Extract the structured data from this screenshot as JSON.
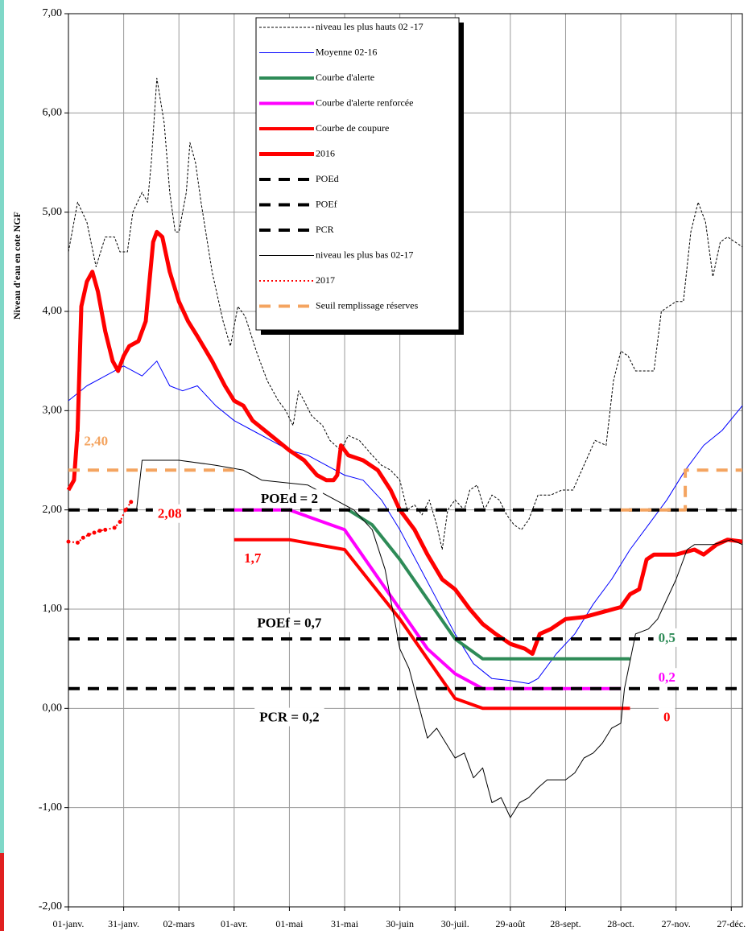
{
  "chart_data": {
    "type": "line",
    "y_label": "Niveau d'eau en cote NGF",
    "xlim": [
      0,
      366
    ],
    "ylim": [
      -2,
      7
    ],
    "xticks": [
      {
        "value": 0,
        "label": "01-janv."
      },
      {
        "value": 30,
        "label": "31-janv."
      },
      {
        "value": 60,
        "label": "02-mars"
      },
      {
        "value": 90,
        "label": "01-avr."
      },
      {
        "value": 120,
        "label": "01-mai"
      },
      {
        "value": 150,
        "label": "31-mai"
      },
      {
        "value": 180,
        "label": "30-juin"
      },
      {
        "value": 210,
        "label": "30-juil."
      },
      {
        "value": 240,
        "label": "29-août"
      },
      {
        "value": 270,
        "label": "28-sept."
      },
      {
        "value": 300,
        "label": "28-oct."
      },
      {
        "value": 330,
        "label": "27-nov."
      },
      {
        "value": 360,
        "label": "27-déc."
      }
    ],
    "yticks": [
      {
        "value": -2,
        "label": "-2,00"
      },
      {
        "value": -1,
        "label": "-1,00"
      },
      {
        "value": 0,
        "label": "0,00"
      },
      {
        "value": 1,
        "label": "1,00"
      },
      {
        "value": 2,
        "label": "2,00"
      },
      {
        "value": 3,
        "label": "3,00"
      },
      {
        "value": 4,
        "label": "4,00"
      },
      {
        "value": 5,
        "label": "5,00"
      },
      {
        "value": 6,
        "label": "6,00"
      },
      {
        "value": 7,
        "label": "7,00"
      }
    ],
    "grid": true,
    "series": [
      {
        "name": "niveau les plus hauts 02 -17",
        "color": "#000000",
        "style": "dashed",
        "width": 1,
        "x": [
          0,
          5,
          10,
          15,
          20,
          25,
          28,
          32,
          35,
          40,
          43,
          45,
          48,
          52,
          55,
          58,
          60,
          64,
          66,
          69,
          72,
          78,
          84,
          88,
          92,
          96,
          102,
          108,
          114,
          118,
          122,
          125,
          128,
          132,
          138,
          142,
          148,
          152,
          158,
          165,
          170,
          175,
          180,
          184,
          188,
          192,
          196,
          200,
          203,
          206,
          210,
          215,
          218,
          222,
          226,
          230,
          234,
          238,
          242,
          246,
          250,
          255,
          262,
          268,
          274,
          280,
          286,
          292,
          296,
          300,
          304,
          308,
          314,
          318,
          322,
          326,
          330,
          334,
          338,
          342,
          346,
          350,
          354,
          358,
          362,
          366
        ],
        "values": [
          4.6,
          5.1,
          4.9,
          4.45,
          4.75,
          4.75,
          4.6,
          4.6,
          5.0,
          5.2,
          5.1,
          5.5,
          6.35,
          5.9,
          5.2,
          4.8,
          4.8,
          5.2,
          5.7,
          5.5,
          5.1,
          4.4,
          3.9,
          3.65,
          4.05,
          3.95,
          3.6,
          3.3,
          3.1,
          3.0,
          2.85,
          3.2,
          3.1,
          2.95,
          2.85,
          2.7,
          2.6,
          2.75,
          2.7,
          2.55,
          2.45,
          2.4,
          2.3,
          2.0,
          2.05,
          1.95,
          2.1,
          1.85,
          1.6,
          2.0,
          2.1,
          2.0,
          2.2,
          2.25,
          2.0,
          2.15,
          2.1,
          1.95,
          1.85,
          1.8,
          1.9,
          2.15,
          2.15,
          2.2,
          2.2,
          2.45,
          2.7,
          2.65,
          3.3,
          3.6,
          3.55,
          3.4,
          3.4,
          3.4,
          4.0,
          4.05,
          4.1,
          4.1,
          4.8,
          5.1,
          4.9,
          4.35,
          4.7,
          4.75,
          4.7,
          4.65
        ]
      },
      {
        "name": "Moyenne 02-16",
        "color": "#0000ff",
        "style": "solid",
        "width": 1,
        "x": [
          0,
          10,
          20,
          30,
          40,
          48,
          55,
          62,
          70,
          80,
          90,
          100,
          110,
          120,
          130,
          140,
          150,
          160,
          170,
          180,
          190,
          200,
          210,
          220,
          230,
          240,
          250,
          255,
          265,
          275,
          285,
          295,
          305,
          315,
          325,
          335,
          345,
          355,
          366
        ],
        "values": [
          3.1,
          3.25,
          3.35,
          3.45,
          3.35,
          3.5,
          3.25,
          3.2,
          3.25,
          3.05,
          2.9,
          2.8,
          2.7,
          2.6,
          2.55,
          2.45,
          2.35,
          2.3,
          2.1,
          1.8,
          1.45,
          1.1,
          0.75,
          0.45,
          0.3,
          0.28,
          0.25,
          0.3,
          0.55,
          0.75,
          1.05,
          1.3,
          1.6,
          1.85,
          2.1,
          2.4,
          2.65,
          2.8,
          3.05
        ]
      },
      {
        "name": "Courbe d'alerte",
        "color": "#2e8b57",
        "style": "solid",
        "width": 4,
        "x": [
          152,
          165,
          180,
          195,
          210,
          225,
          305
        ],
        "values": [
          2.0,
          1.85,
          1.5,
          1.1,
          0.7,
          0.5,
          0.5
        ]
      },
      {
        "name": "Courbe d'alerte renforcée",
        "color": "#ff00ff",
        "style": "solid",
        "width": 4,
        "x": [
          90,
          120,
          150,
          165,
          180,
          195,
          210,
          225,
          300
        ],
        "values": [
          2.0,
          2.0,
          1.8,
          1.4,
          1.0,
          0.6,
          0.35,
          0.2,
          0.2
        ]
      },
      {
        "name": "Courbe de coupure",
        "color": "#ff0000",
        "style": "solid",
        "width": 4,
        "x": [
          90,
          120,
          150,
          165,
          180,
          195,
          210,
          225,
          305
        ],
        "values": [
          1.7,
          1.7,
          1.6,
          1.25,
          0.9,
          0.5,
          0.1,
          0.0,
          0.0
        ]
      },
      {
        "name": "2016",
        "color": "#ff0000",
        "style": "solid",
        "width": 5,
        "x": [
          0,
          3,
          5,
          7,
          10,
          13,
          16,
          20,
          24,
          27,
          30,
          33,
          38,
          42,
          44,
          46,
          48,
          51,
          55,
          60,
          65,
          70,
          78,
          85,
          90,
          95,
          100,
          110,
          120,
          128,
          135,
          140,
          144,
          146,
          148,
          152,
          160,
          168,
          175,
          180,
          188,
          195,
          203,
          210,
          218,
          225,
          232,
          240,
          248,
          252,
          256,
          262,
          270,
          280,
          290,
          300,
          305,
          310,
          314,
          318,
          330,
          340,
          345,
          352,
          358,
          366
        ],
        "values": [
          2.2,
          2.3,
          2.8,
          4.05,
          4.3,
          4.4,
          4.2,
          3.8,
          3.5,
          3.4,
          3.55,
          3.65,
          3.7,
          3.9,
          4.3,
          4.7,
          4.8,
          4.75,
          4.4,
          4.1,
          3.9,
          3.75,
          3.5,
          3.25,
          3.1,
          3.05,
          2.9,
          2.75,
          2.6,
          2.5,
          2.35,
          2.3,
          2.3,
          2.35,
          2.65,
          2.55,
          2.5,
          2.4,
          2.2,
          2.0,
          1.8,
          1.55,
          1.3,
          1.2,
          1.0,
          0.85,
          0.75,
          0.65,
          0.6,
          0.55,
          0.75,
          0.8,
          0.9,
          0.92,
          0.97,
          1.02,
          1.15,
          1.2,
          1.5,
          1.55,
          1.55,
          1.6,
          1.55,
          1.65,
          1.7,
          1.68
        ]
      },
      {
        "name": "POEd",
        "color": "#000000",
        "style": "bigdash",
        "width": 4,
        "x": [
          0,
          366
        ],
        "values": [
          2,
          2
        ]
      },
      {
        "name": "POEf",
        "color": "#000000",
        "style": "bigdash",
        "width": 4,
        "x": [
          0,
          366
        ],
        "values": [
          0.7,
          0.7
        ]
      },
      {
        "name": "PCR",
        "color": "#000000",
        "style": "bigdash",
        "width": 4,
        "x": [
          0,
          366
        ],
        "values": [
          0.2,
          0.2
        ]
      },
      {
        "name": "niveau les plus bas 02-17",
        "color": "#000000",
        "style": "solid",
        "width": 1,
        "x": [
          37,
          40,
          60,
          80,
          95,
          100,
          105,
          130,
          145,
          155,
          165,
          172,
          177,
          180,
          185,
          190,
          195,
          200,
          205,
          210,
          215,
          220,
          225,
          230,
          235,
          240,
          245,
          250,
          255,
          260,
          270,
          275,
          280,
          285,
          290,
          295,
          300,
          302,
          308,
          315,
          320,
          330,
          336,
          340,
          350,
          360,
          366
        ],
        "values": [
          2.0,
          2.5,
          2.5,
          2.45,
          2.4,
          2.35,
          2.3,
          2.25,
          2.1,
          2.0,
          1.8,
          1.4,
          0.9,
          0.6,
          0.4,
          0.05,
          -0.3,
          -0.2,
          -0.35,
          -0.5,
          -0.45,
          -0.7,
          -0.6,
          -0.95,
          -0.9,
          -1.1,
          -0.95,
          -0.9,
          -0.8,
          -0.72,
          -0.72,
          -0.65,
          -0.5,
          -0.45,
          -0.35,
          -0.2,
          -0.15,
          0.2,
          0.75,
          0.8,
          0.9,
          1.3,
          1.6,
          1.65,
          1.65,
          1.7,
          1.65
        ]
      },
      {
        "name": "2017",
        "color": "#ff0000",
        "style": "dotted",
        "width": 2,
        "markers": true,
        "x": [
          0,
          5,
          8,
          11,
          14,
          17,
          20,
          25,
          28,
          31,
          34
        ],
        "values": [
          1.68,
          1.67,
          1.72,
          1.75,
          1.77,
          1.79,
          1.8,
          1.82,
          1.88,
          2.0,
          2.08
        ]
      },
      {
        "name": "Seuil remplissage réserves",
        "color": "#f4a460",
        "style": "bigdash",
        "width": 4,
        "x": [
          0,
          90,
          200,
          300,
          335,
          335,
          366
        ],
        "values": [
          2.4,
          2.4,
          null,
          2.0,
          2.0,
          2.4,
          2.4
        ]
      }
    ],
    "annotations": [
      {
        "text": "2,40",
        "color": "#f4a460"
      },
      {
        "text": "POEd = 2",
        "color": "#000000"
      },
      {
        "text": "2,08",
        "color": "#ff0000"
      },
      {
        "text": "1,7",
        "color": "#ff0000"
      },
      {
        "text": "POEf = 0,7",
        "color": "#000000"
      },
      {
        "text": "0,5",
        "color": "#2e8b57"
      },
      {
        "text": "0,2",
        "color": "#ff00ff"
      },
      {
        "text": "PCR = 0,2",
        "color": "#000000"
      },
      {
        "text": "0",
        "color": "#ff0000"
      }
    ]
  }
}
